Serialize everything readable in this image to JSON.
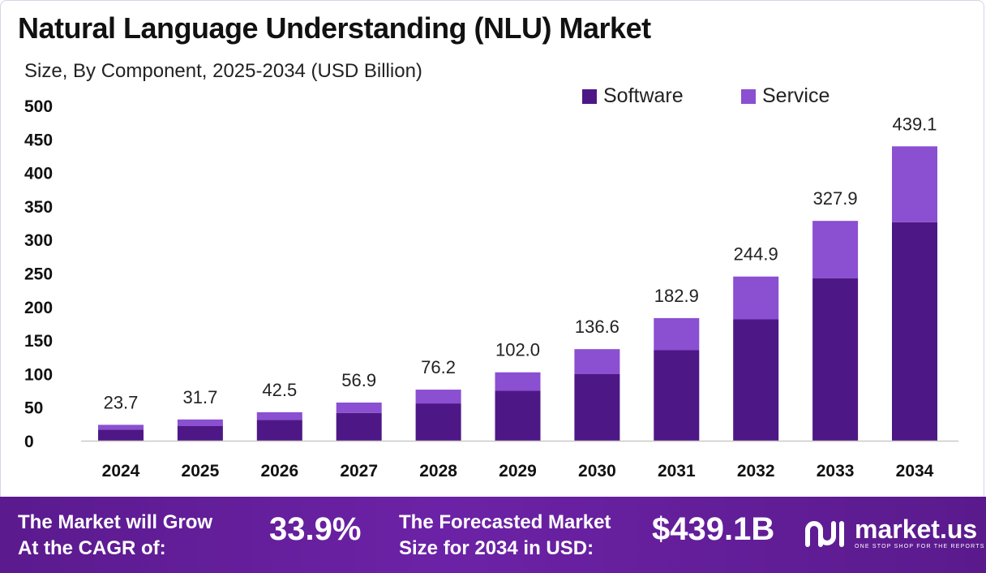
{
  "chart_data": {
    "type": "bar",
    "stacked": true,
    "title": "Natural Language Understanding (NLU) Market",
    "subtitle": "Size, By Component, 2025-2034 (USD Billion)",
    "categories": [
      "2024",
      "2025",
      "2026",
      "2027",
      "2028",
      "2029",
      "2030",
      "2031",
      "2032",
      "2033",
      "2034"
    ],
    "series": [
      {
        "name": "Software",
        "color": "#4e1786",
        "values": [
          16.6,
          22.2,
          31.0,
          41.5,
          55.6,
          74.5,
          99.7,
          135.0,
          181.0,
          242.5,
          326.0
        ]
      },
      {
        "name": "Service",
        "color": "#8b4fd1",
        "values": [
          7.1,
          9.5,
          11.5,
          15.4,
          20.6,
          27.5,
          36.9,
          47.9,
          63.9,
          85.4,
          113.1
        ]
      }
    ],
    "totals": [
      "23.7",
      "31.7",
      "42.5",
      "56.9",
      "76.2",
      "102.0",
      "136.6",
      "182.9",
      "244.9",
      "327.9",
      "439.1"
    ],
    "y_ticks": [
      "0",
      "50",
      "100",
      "150",
      "200",
      "250",
      "300",
      "350",
      "400",
      "450",
      "500"
    ],
    "ylim": [
      0,
      500
    ],
    "grid": false,
    "legend_position": "top-right"
  },
  "footer": {
    "cagr_label_line1": "The Market will Grow",
    "cagr_label_line2": "At the CAGR of:",
    "cagr_value": "33.9%",
    "forecast_label_line1": "The Forecasted Market",
    "forecast_label_line2": "Size for 2034 in USD:",
    "forecast_value": "$439.1B",
    "brand_name": "market.us",
    "brand_tagline": "ONE STOP SHOP FOR THE REPORTS",
    "brand_icon": "market-us-logo-icon"
  }
}
